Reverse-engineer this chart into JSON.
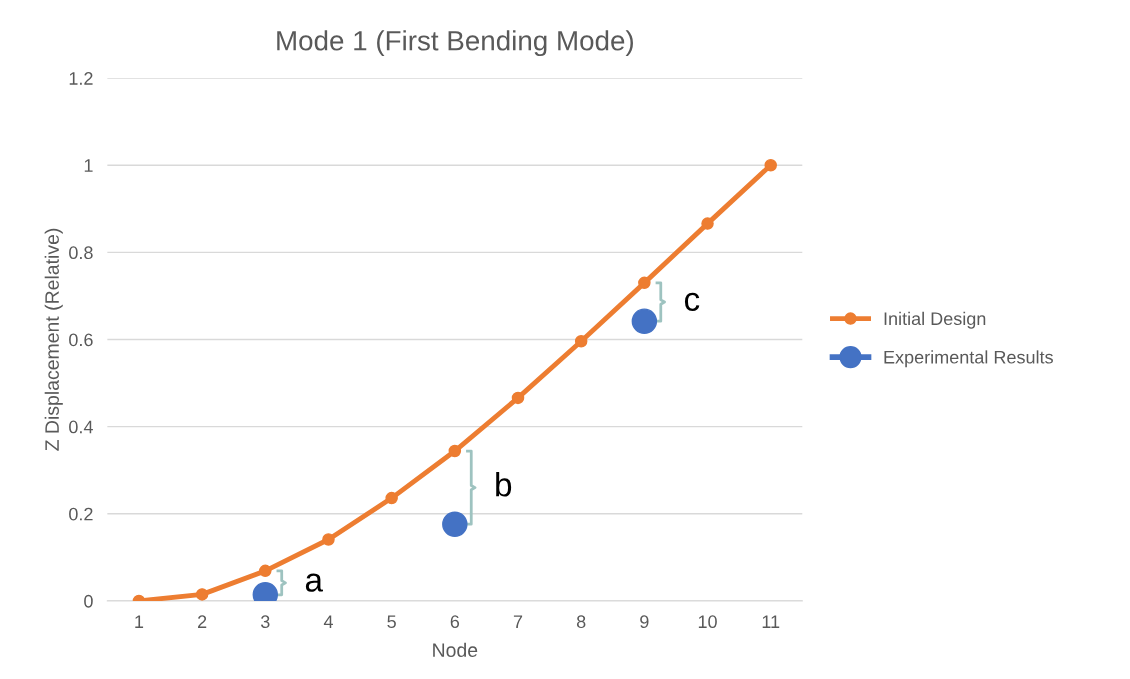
{
  "chart_data": {
    "type": "line",
    "title": "Mode 1 (First Bending Mode)",
    "xlabel": "Node",
    "ylabel": "Z Displacement (Relative)",
    "categories": [
      "1",
      "2",
      "3",
      "4",
      "5",
      "6",
      "7",
      "8",
      "9",
      "10",
      "11"
    ],
    "series": [
      {
        "name": "Initial Design",
        "color": "#ed7d31",
        "marker": "circle",
        "values": [
          0,
          0.015,
          0.069,
          0.141,
          0.236,
          0.344,
          0.466,
          0.596,
          0.73,
          0.866,
          1
        ]
      },
      {
        "name": "Experimental Results",
        "color": "#4472c4",
        "type": "scatter",
        "marker": "circle",
        "values": [
          null,
          null,
          0.014,
          null,
          null,
          0.176,
          null,
          null,
          0.642,
          null,
          null
        ]
      }
    ],
    "ylim": [
      0,
      1.2
    ],
    "yticks": [
      0,
      0.2,
      0.4,
      0.6,
      0.8,
      1,
      1.2
    ],
    "grid": "y",
    "legend": "right",
    "annotations": [
      "a",
      "b",
      "c"
    ]
  }
}
